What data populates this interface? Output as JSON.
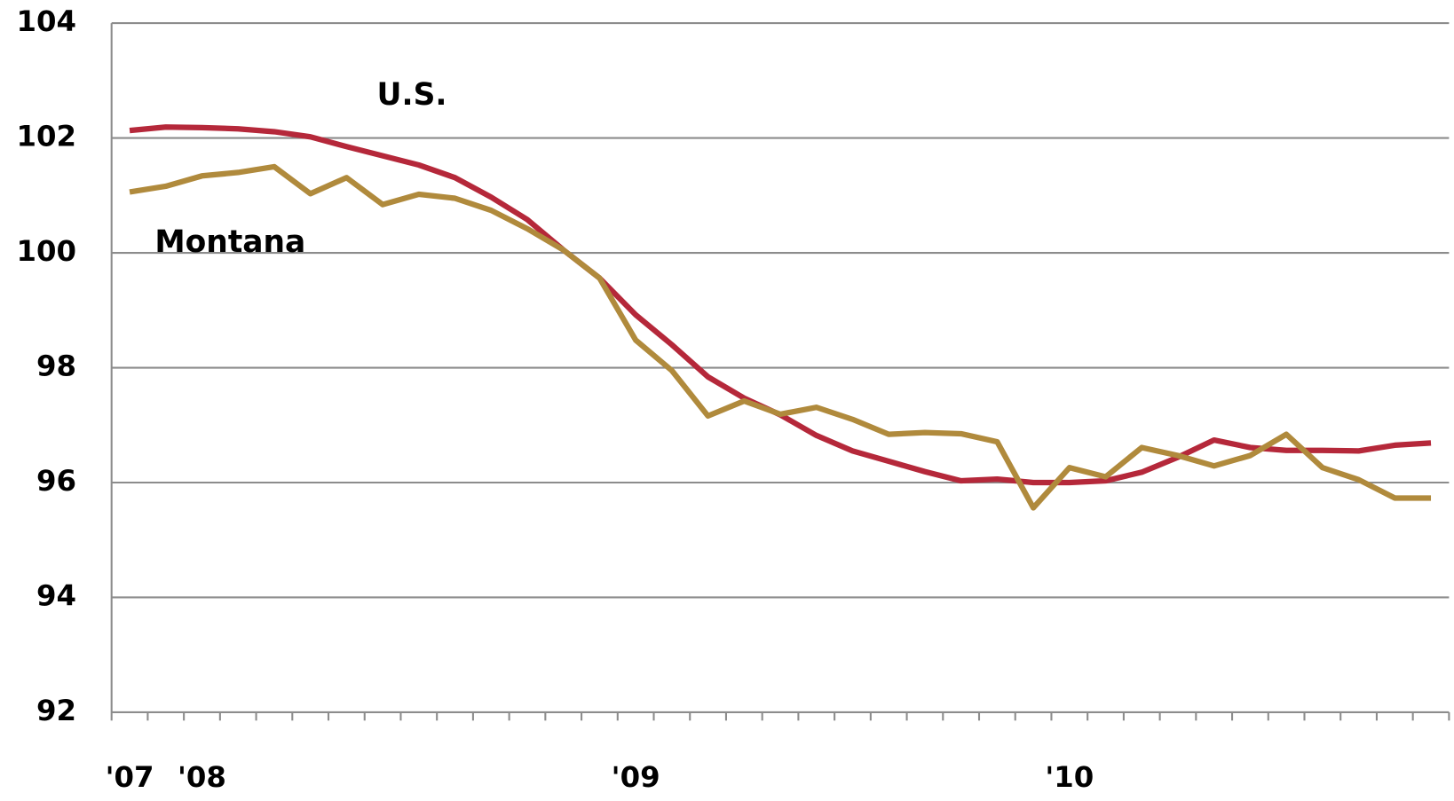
{
  "chart_data": {
    "type": "line",
    "categories": [
      "'07",
      null,
      "'08",
      null,
      null,
      null,
      null,
      null,
      null,
      null,
      null,
      null,
      null,
      null,
      "'09",
      null,
      null,
      null,
      null,
      null,
      null,
      null,
      null,
      null,
      null,
      null,
      "'10",
      null,
      null,
      null,
      null,
      null,
      null,
      null,
      null,
      null,
      null
    ],
    "series": [
      {
        "name": "U.S.",
        "color": "#b5283a",
        "values": [
          102.13,
          102.19,
          102.18,
          102.16,
          102.11,
          102.02,
          101.85,
          101.69,
          101.53,
          101.31,
          100.97,
          100.58,
          100.05,
          99.56,
          98.92,
          98.4,
          97.84,
          97.47,
          97.18,
          96.82,
          96.55,
          96.37,
          96.19,
          96.03,
          96.06,
          96.0,
          96.0,
          96.03,
          96.18,
          96.44,
          96.74,
          96.61,
          96.56,
          96.56,
          96.55,
          96.65,
          96.69
        ]
      },
      {
        "name": "Montana",
        "color": "#b08a3c",
        "values": [
          101.06,
          101.16,
          101.34,
          101.4,
          101.5,
          101.03,
          101.31,
          100.84,
          101.02,
          100.95,
          100.74,
          100.42,
          100.05,
          99.56,
          98.48,
          97.95,
          97.16,
          97.42,
          97.19,
          97.31,
          97.1,
          96.84,
          96.87,
          96.85,
          96.71,
          95.56,
          96.26,
          96.1,
          96.61,
          96.47,
          96.29,
          96.47,
          96.84,
          96.26,
          96.05,
          95.73,
          95.73
        ]
      }
    ],
    "ylim": [
      92,
      104
    ],
    "yticks": [
      92,
      94,
      96,
      98,
      100,
      102,
      104
    ],
    "grid": true
  }
}
